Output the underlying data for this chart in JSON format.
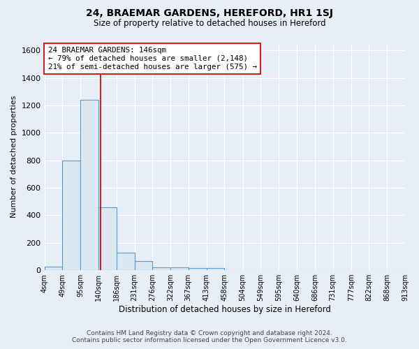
{
  "title": "24, BRAEMAR GARDENS, HEREFORD, HR1 1SJ",
  "subtitle": "Size of property relative to detached houses in Hereford",
  "xlabel": "Distribution of detached houses by size in Hereford",
  "ylabel": "Number of detached properties",
  "bin_edges": [
    4,
    49,
    95,
    140,
    186,
    231,
    276,
    322,
    367,
    413,
    458,
    504,
    549,
    595,
    640,
    686,
    731,
    777,
    822,
    868,
    913
  ],
  "bar_heights": [
    25,
    800,
    1240,
    460,
    130,
    65,
    20,
    20,
    15,
    15,
    0,
    0,
    0,
    0,
    0,
    0,
    0,
    0,
    0,
    0
  ],
  "bar_color": "#dce8f0",
  "bar_edge_color": "#5b9bd5",
  "property_sqm": 146,
  "property_label": "24 BRAEMAR GARDENS: 146sqm",
  "annotation_line1": "← 79% of detached houses are smaller (2,148)",
  "annotation_line2": "21% of semi-detached houses are larger (575) →",
  "annotation_box_color": "#ffffff",
  "annotation_box_edge": "#cc2222",
  "vline_color": "#cc2222",
  "ylim": [
    0,
    1650
  ],
  "yticks": [
    0,
    200,
    400,
    600,
    800,
    1000,
    1200,
    1400,
    1600
  ],
  "bg_color": "#e8eef5",
  "grid_color": "#ffffff",
  "footer_line1": "Contains HM Land Registry data © Crown copyright and database right 2024.",
  "footer_line2": "Contains public sector information licensed under the Open Government Licence v3.0."
}
